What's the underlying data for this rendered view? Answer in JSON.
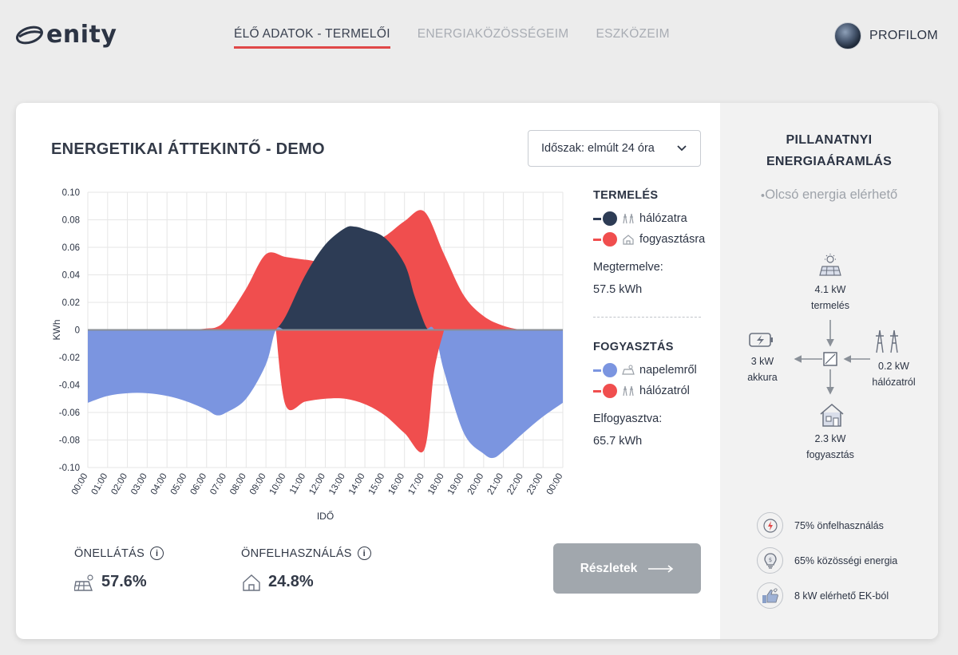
{
  "brand": {
    "name": "enity"
  },
  "nav": {
    "items": [
      {
        "label": "ÉLŐ ADATOK - TERMELŐI",
        "active": true
      },
      {
        "label": "ENERGIAKÖZÖSSÉGEIM",
        "active": false
      },
      {
        "label": "ESZKÖZEIM",
        "active": false
      }
    ],
    "profile_label": "PROFILOM"
  },
  "overview": {
    "title": "ENERGETIKAI ÁTTEKINTŐ - DEMO",
    "period_select": "Időszak: elmúlt 24 óra"
  },
  "legend": {
    "production": {
      "heading": "TERMELÉS",
      "items": [
        {
          "label": "hálózatra",
          "color": "#2d3c55"
        },
        {
          "label": "fogyasztásra",
          "color": "#f04e4e"
        }
      ],
      "stat_label": "Megtermelve:",
      "stat_value": "57.5 kWh"
    },
    "consumption": {
      "heading": "FOGYASZTÁS",
      "items": [
        {
          "label": "napelemről",
          "color": "#7b95e0"
        },
        {
          "label": "hálózatról",
          "color": "#f04e4e"
        }
      ],
      "stat_label": "Elfogyasztva:",
      "stat_value": "65.7 kWh"
    }
  },
  "chart_data": {
    "type": "area",
    "xlabel": "IDŐ",
    "ylabel": "KWh",
    "ylim": [
      -0.1,
      0.1
    ],
    "yticks": [
      "0.10",
      "0.08",
      "0.06",
      "0.04",
      "0.02",
      "0",
      "-0.02",
      "-0.04",
      "-0.06",
      "-0.08",
      "-0.10"
    ],
    "ytick_values": [
      0.1,
      0.08,
      0.06,
      0.04,
      0.02,
      0,
      -0.02,
      -0.04,
      -0.06,
      -0.08,
      -0.1
    ],
    "categories": [
      "00:00",
      "01:00",
      "02:00",
      "03:00",
      "04:00",
      "05:00",
      "06:00",
      "07:00",
      "08:00",
      "09:00",
      "10:00",
      "11:00",
      "12:00",
      "13:00",
      "14:00",
      "15:00",
      "16:00",
      "17:00",
      "18:00",
      "19:00",
      "20:00",
      "21:00",
      "22:00",
      "23:00",
      "00:00"
    ],
    "grid": true,
    "series": [
      {
        "name": "fogyasztásra",
        "color": "#f04e4e",
        "x": [
          0,
          1,
          2,
          3,
          4,
          5,
          6,
          6.5,
          7,
          8,
          9,
          10,
          11,
          12,
          13,
          14,
          15,
          16,
          17,
          18,
          19,
          20,
          21,
          22,
          23,
          24
        ],
        "values": [
          0,
          0,
          0,
          0,
          0,
          0,
          0.001,
          0.002,
          0.008,
          0.03,
          0.055,
          0.053,
          0.051,
          0.05,
          0.058,
          0.062,
          0.068,
          0.079,
          0.086,
          0.055,
          0.025,
          0.01,
          0.003,
          0,
          0,
          0
        ]
      },
      {
        "name": "hálózatra",
        "color": "#2d3c55",
        "x": [
          9.5,
          10,
          11,
          12,
          13,
          13.5,
          14,
          15,
          16,
          16.5,
          17,
          17.2
        ],
        "values": [
          0,
          0.01,
          0.04,
          0.062,
          0.074,
          0.075,
          0.073,
          0.067,
          0.048,
          0.025,
          0.005,
          0
        ]
      },
      {
        "name": "napelemről",
        "color": "#7b95e0",
        "x": [
          0,
          1,
          2,
          3,
          4,
          5,
          6,
          6.5,
          7,
          8,
          9,
          9.5,
          10,
          11,
          12,
          13,
          14,
          15,
          16,
          17,
          17.5,
          18,
          19,
          20,
          20.5,
          21,
          22,
          23,
          24
        ],
        "values": [
          -0.053,
          -0.048,
          -0.046,
          -0.046,
          -0.048,
          -0.052,
          -0.058,
          -0.062,
          -0.06,
          -0.05,
          -0.025,
          0,
          0,
          0,
          0,
          0,
          0,
          0,
          0,
          0,
          0,
          -0.03,
          -0.075,
          -0.09,
          -0.093,
          -0.088,
          -0.075,
          -0.063,
          -0.053
        ]
      },
      {
        "name": "hálózatról",
        "color": "#f04e4e",
        "x": [
          9.5,
          10,
          11,
          12,
          13,
          14,
          15,
          16,
          17,
          17.5,
          18
        ],
        "values": [
          0,
          -0.055,
          -0.052,
          -0.05,
          -0.05,
          -0.054,
          -0.062,
          -0.075,
          -0.087,
          -0.03,
          0
        ]
      }
    ]
  },
  "kpis": {
    "self_sufficiency": {
      "label": "ÖNELLÁTÁS",
      "value": "57.6%"
    },
    "self_consumption": {
      "label": "ÖNFELHASZNÁLÁS",
      "value": "24.8%"
    }
  },
  "details_button": {
    "label": "Részletek"
  },
  "flow_panel": {
    "title_line1": "PILLANATNYI",
    "title_line2": "ENERGIAÁRAMLÁS",
    "note": "Olcsó energia elérhető",
    "production": {
      "value": "4.1 kW",
      "label": "termelés"
    },
    "battery": {
      "value": "3 kW",
      "label": "akkura"
    },
    "grid": {
      "value": "0.2 kW",
      "label": "hálózatról"
    },
    "consumption": {
      "value": "2.3 kW",
      "label": "fogyasztás"
    }
  },
  "badges": [
    {
      "label": "75% önfelhasználás",
      "icon": "lightning-circle-icon"
    },
    {
      "label": "65% közösségi energia",
      "icon": "lightbulb-icon"
    },
    {
      "label": "8 kW elérhető EK-ból",
      "icon": "thumbs-up-icon"
    }
  ]
}
